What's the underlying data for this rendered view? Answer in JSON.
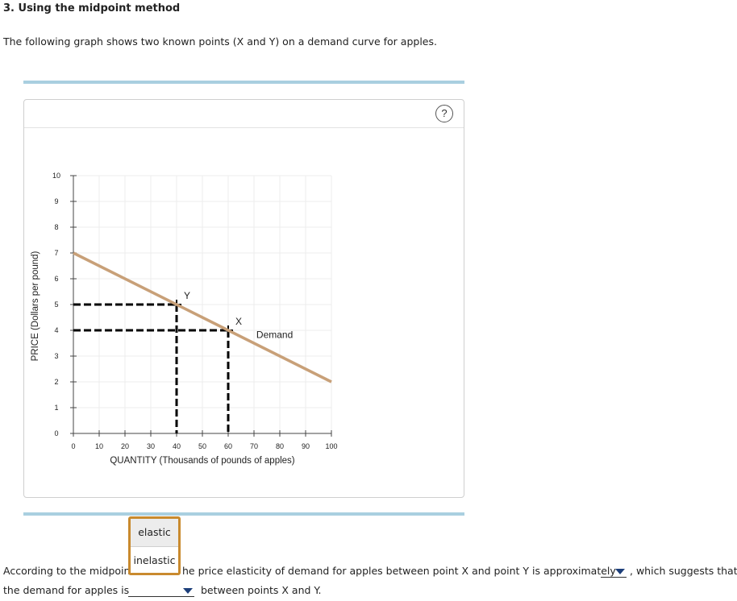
{
  "heading": "3. Using the midpoint method",
  "intro": "The following graph shows two known points (X and Y) on a demand curve for apples.",
  "help_label": "?",
  "colors": {
    "demand": "#c8a078",
    "rule": "#a9cfe0",
    "menu_border": "#c98a2e",
    "caret": "#1d3f7a"
  },
  "chart_data": {
    "type": "line",
    "xlabel": "QUANTITY (Thousands of pounds of apples)",
    "ylabel": "PRICE (Dollars per pound)",
    "xlim": [
      0,
      100
    ],
    "ylim": [
      0,
      10
    ],
    "x_ticks": [
      0,
      10,
      20,
      30,
      40,
      50,
      60,
      70,
      80,
      90,
      100
    ],
    "y_ticks": [
      0,
      1,
      2,
      3,
      4,
      5,
      6,
      7,
      8,
      9,
      10
    ],
    "grid": true,
    "series": [
      {
        "name": "Demand",
        "x": [
          0,
          100
        ],
        "y": [
          7,
          2
        ]
      }
    ],
    "points": [
      {
        "label": "Y",
        "x": 40,
        "y": 5
      },
      {
        "label": "X",
        "x": 60,
        "y": 4
      }
    ]
  },
  "question": {
    "part1_prefix": "According to the midpoint",
    "part1_suffix": "he price elasticity of demand for apples between point X and point Y is approximately",
    "part1_end": ", which suggests that",
    "part2_prefix": "the demand for apples is",
    "part2_suffix": "between points X and Y."
  },
  "dropdown_options": [
    "elastic",
    "inelastic"
  ]
}
